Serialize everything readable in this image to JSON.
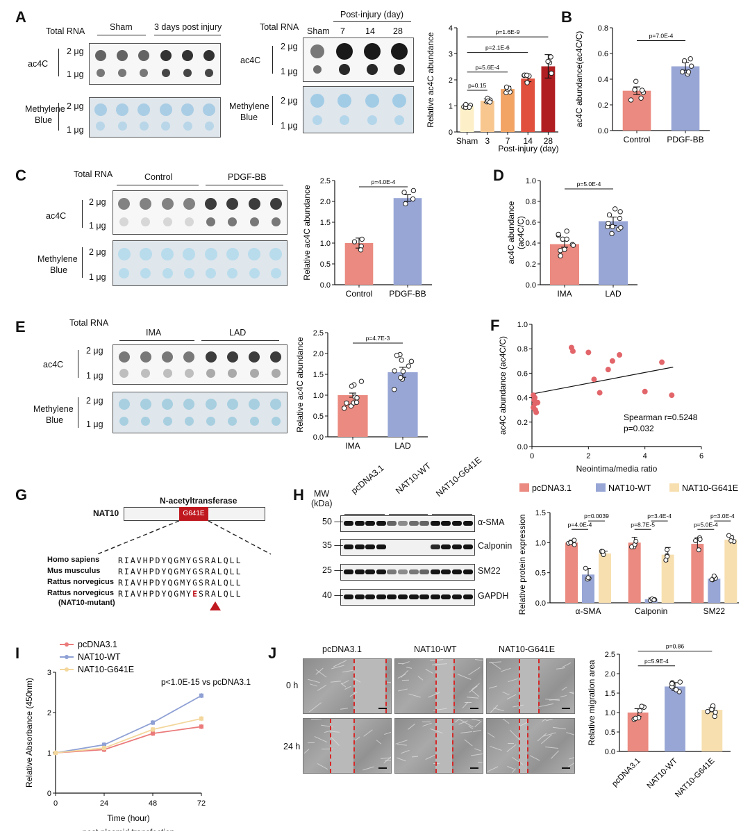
{
  "panels": {
    "A": "A",
    "B": "B",
    "C": "C",
    "D": "D",
    "E": "E",
    "F": "F",
    "G": "G",
    "H": "H",
    "I": "I",
    "J": "J"
  },
  "dotblot": {
    "total_rna": "Total RNA",
    "ac4c": "ac4C",
    "methylene_1": "Methylene",
    "methylene_2": "Blue",
    "amt_2": "2 μg",
    "amt_1": "1 μg",
    "A1_groups": [
      "Sham",
      "3 days post injury"
    ],
    "A2_header": "Post-injury (day)",
    "A2_groups": [
      "Sham",
      "7",
      "14",
      "28"
    ],
    "C_groups": [
      "Control",
      "PDGF-BB"
    ],
    "E_groups": [
      "IMA",
      "LAD"
    ]
  },
  "colors": {
    "sham": "#fdf0c8",
    "d3": "#f8c790",
    "d7": "#f2a465",
    "d14": "#e0503d",
    "d28": "#b01e22",
    "red": "#eb8a80",
    "blue": "#98a6d6",
    "yellow": "#f7dfb0",
    "line_red": "#eb7b7b",
    "line_blue": "#8ea0d4",
    "line_yellow": "#f3d79c"
  },
  "chart_data": [
    {
      "id": "A",
      "type": "bar",
      "categories": [
        "Sham",
        "3",
        "7",
        "14",
        "28"
      ],
      "values": [
        1.0,
        1.2,
        1.65,
        2.05,
        2.52
      ],
      "errors": [
        0.06,
        0.07,
        0.1,
        0.12,
        0.45
      ],
      "ylabel": "Relative ac4C abundance",
      "xlabel": "Post-injury (day)",
      "ylim": [
        0,
        4
      ],
      "yticks": [
        "0",
        "1",
        "2",
        "3",
        "4"
      ],
      "pvalues": [
        "p=0.15",
        "p=5.6E-4",
        "p=2.1E-6",
        "p=1.6E-9"
      ]
    },
    {
      "id": "B",
      "type": "bar",
      "categories": [
        "Control",
        "PDGF-BB"
      ],
      "values": [
        0.31,
        0.5
      ],
      "errors": [
        0.03,
        0.03
      ],
      "ylabel": "ac4C abundance(ac4C/C)",
      "ylim": [
        0,
        0.8
      ],
      "yticks": [
        "0.0",
        "0.2",
        "0.4",
        "0.6",
        "0.8"
      ],
      "pvalues": [
        "p=7.0E-4"
      ]
    },
    {
      "id": "C",
      "type": "bar",
      "categories": [
        "Control",
        "PDGF-BB"
      ],
      "values": [
        1.0,
        2.08
      ],
      "errors": [
        0.12,
        0.08
      ],
      "ylabel": "Relative ac4C abundance",
      "ylim": [
        0,
        2.5
      ],
      "yticks": [
        "0.0",
        "0.5",
        "1.0",
        "1.5",
        "2.0",
        "2.5"
      ],
      "pvalues": [
        "p=4.0E-4"
      ]
    },
    {
      "id": "D",
      "type": "bar",
      "categories": [
        "IMA",
        "LAD"
      ],
      "values": [
        0.39,
        0.61
      ],
      "errors": [
        0.03,
        0.04
      ],
      "ylabel_1": "ac4C abundance",
      "ylabel_2": "(ac4C/C)",
      "ylim": [
        0,
        1.0
      ],
      "yticks": [
        "0.0",
        "0.2",
        "0.4",
        "0.6",
        "0.8",
        "1.0"
      ],
      "pvalues": [
        "p=5.0E-4"
      ]
    },
    {
      "id": "E",
      "type": "bar",
      "categories": [
        "IMA",
        "LAD"
      ],
      "values": [
        1.0,
        1.55
      ],
      "errors": [
        0.05,
        0.12
      ],
      "ylabel": "Relative ac4C abundance",
      "ylim": [
        0,
        2.5
      ],
      "yticks": [
        "0.0",
        "0.5",
        "1.0",
        "1.5",
        "2.0",
        "2.5"
      ],
      "pvalues": [
        "p=4.7E-3"
      ]
    },
    {
      "id": "F",
      "type": "scatter",
      "xlabel": "Neointima/media ratio",
      "ylabel": "ac4C abundance (ac4C/C)",
      "xlim": [
        0,
        6
      ],
      "ylim": [
        0,
        1.0
      ],
      "xticks": [
        "0",
        "2",
        "4",
        "6"
      ],
      "yticks": [
        "0.0",
        "0.2",
        "0.4",
        "0.6",
        "0.8",
        "1.0"
      ],
      "points": [
        [
          0.05,
          0.42
        ],
        [
          0.08,
          0.38
        ],
        [
          0.1,
          0.35
        ],
        [
          0.12,
          0.3
        ],
        [
          0.15,
          0.28
        ],
        [
          0.1,
          0.4
        ],
        [
          0.2,
          0.36
        ],
        [
          0.05,
          0.32
        ],
        [
          1.4,
          0.81
        ],
        [
          1.45,
          0.78
        ],
        [
          2.0,
          0.77
        ],
        [
          2.2,
          0.55
        ],
        [
          2.4,
          0.44
        ],
        [
          2.7,
          0.63
        ],
        [
          2.85,
          0.7
        ],
        [
          3.1,
          0.75
        ],
        [
          4.0,
          0.45
        ],
        [
          4.6,
          0.69
        ],
        [
          4.95,
          0.42
        ]
      ],
      "fit": [
        [
          0,
          0.43
        ],
        [
          5,
          0.65
        ]
      ],
      "stat_1": "Spearman r=0.5248",
      "stat_2": "p=0.032"
    },
    {
      "id": "H",
      "type": "bar",
      "categories": [
        "α-SMA",
        "Calponin",
        "SM22"
      ],
      "series": [
        {
          "name": "pcDNA3.1",
          "values": [
            1.0,
            1.0,
            0.98
          ]
        },
        {
          "name": "NAT10-WT",
          "values": [
            0.47,
            0.06,
            0.4
          ]
        },
        {
          "name": "NAT10-G641E",
          "values": [
            0.82,
            0.8,
            1.05
          ]
        }
      ],
      "errors": [
        [
          0.04,
          0.09,
          0.1
        ],
        [
          0.1,
          0.02,
          0.04
        ],
        [
          0.04,
          0.12,
          0.07
        ]
      ],
      "ylabel": "Relative protein expression",
      "ylim": [
        0,
        1.5
      ],
      "yticks": [
        "0.0",
        "0.5",
        "1.0",
        "1.5"
      ],
      "pvalues": [
        "p=4.0E-4",
        "p=0.0039",
        "p=8.7E-5",
        "p=3.4E-4",
        "p=5.0E-4",
        "p=3.0E-4"
      ]
    },
    {
      "id": "I",
      "type": "line",
      "x": [
        0,
        24,
        48,
        72
      ],
      "series": [
        {
          "name": "pcDNA3.1",
          "values": [
            1.0,
            1.08,
            1.48,
            1.65
          ]
        },
        {
          "name": "NAT10-WT",
          "values": [
            1.0,
            1.2,
            1.75,
            2.42
          ]
        },
        {
          "name": "NAT10-G641E",
          "values": [
            1.0,
            1.12,
            1.58,
            1.85
          ]
        }
      ],
      "xlabel": "Time (hour)",
      "xlabel2": "post plasmid transfection",
      "ylabel": "Relative Absorbance (450nm)",
      "ylim": [
        0,
        3
      ],
      "yticks": [
        "0",
        "1",
        "2",
        "3"
      ],
      "xticks": [
        "0",
        "24",
        "48",
        "72"
      ],
      "annotation": "p<1.0E-15 vs pcDNA3.1"
    },
    {
      "id": "J",
      "type": "bar",
      "categories": [
        "pcDNA3.1",
        "NAT10-WT",
        "NAT10-G641E"
      ],
      "values": [
        1.0,
        1.67,
        1.07
      ],
      "errors": [
        0.1,
        0.1,
        0.05
      ],
      "ylabel": "Relative  migration area",
      "ylim": [
        0,
        2.5
      ],
      "yticks": [
        "0.0",
        "0.5",
        "1.0",
        "1.5",
        "2.0",
        "2.5"
      ],
      "pvalues": [
        "p=5.9E-4",
        "p=0.86"
      ]
    }
  ],
  "G": {
    "title": "N-acetyltransferase",
    "protein": "NAT10",
    "mutation": "G641E",
    "species": [
      "Homo sapiens",
      "Mus musculus",
      "Rattus norvegicus",
      "Rattus norvegicus"
    ],
    "mutant_note": "(NAT10-mutant)",
    "seq_pre": "RIAVHPDYQGMY",
    "seq_g": "G",
    "seq_e": "E",
    "seq_post": "SRALQLL"
  },
  "H_blot": {
    "mw": "MW",
    "kda": "(kDa)",
    "groups": [
      "pcDNA3.1",
      "NAT10-WT",
      "NAT10-G641E"
    ],
    "mws": [
      "50",
      "35",
      "25",
      "40"
    ],
    "proteins": [
      "α-SMA",
      "Calponin",
      "SM22",
      "GAPDH"
    ]
  },
  "J_micro": {
    "cols": [
      "pcDNA3.1",
      "NAT10-WT",
      "NAT10-G641E"
    ],
    "rows": [
      "0 h",
      "24 h"
    ]
  }
}
